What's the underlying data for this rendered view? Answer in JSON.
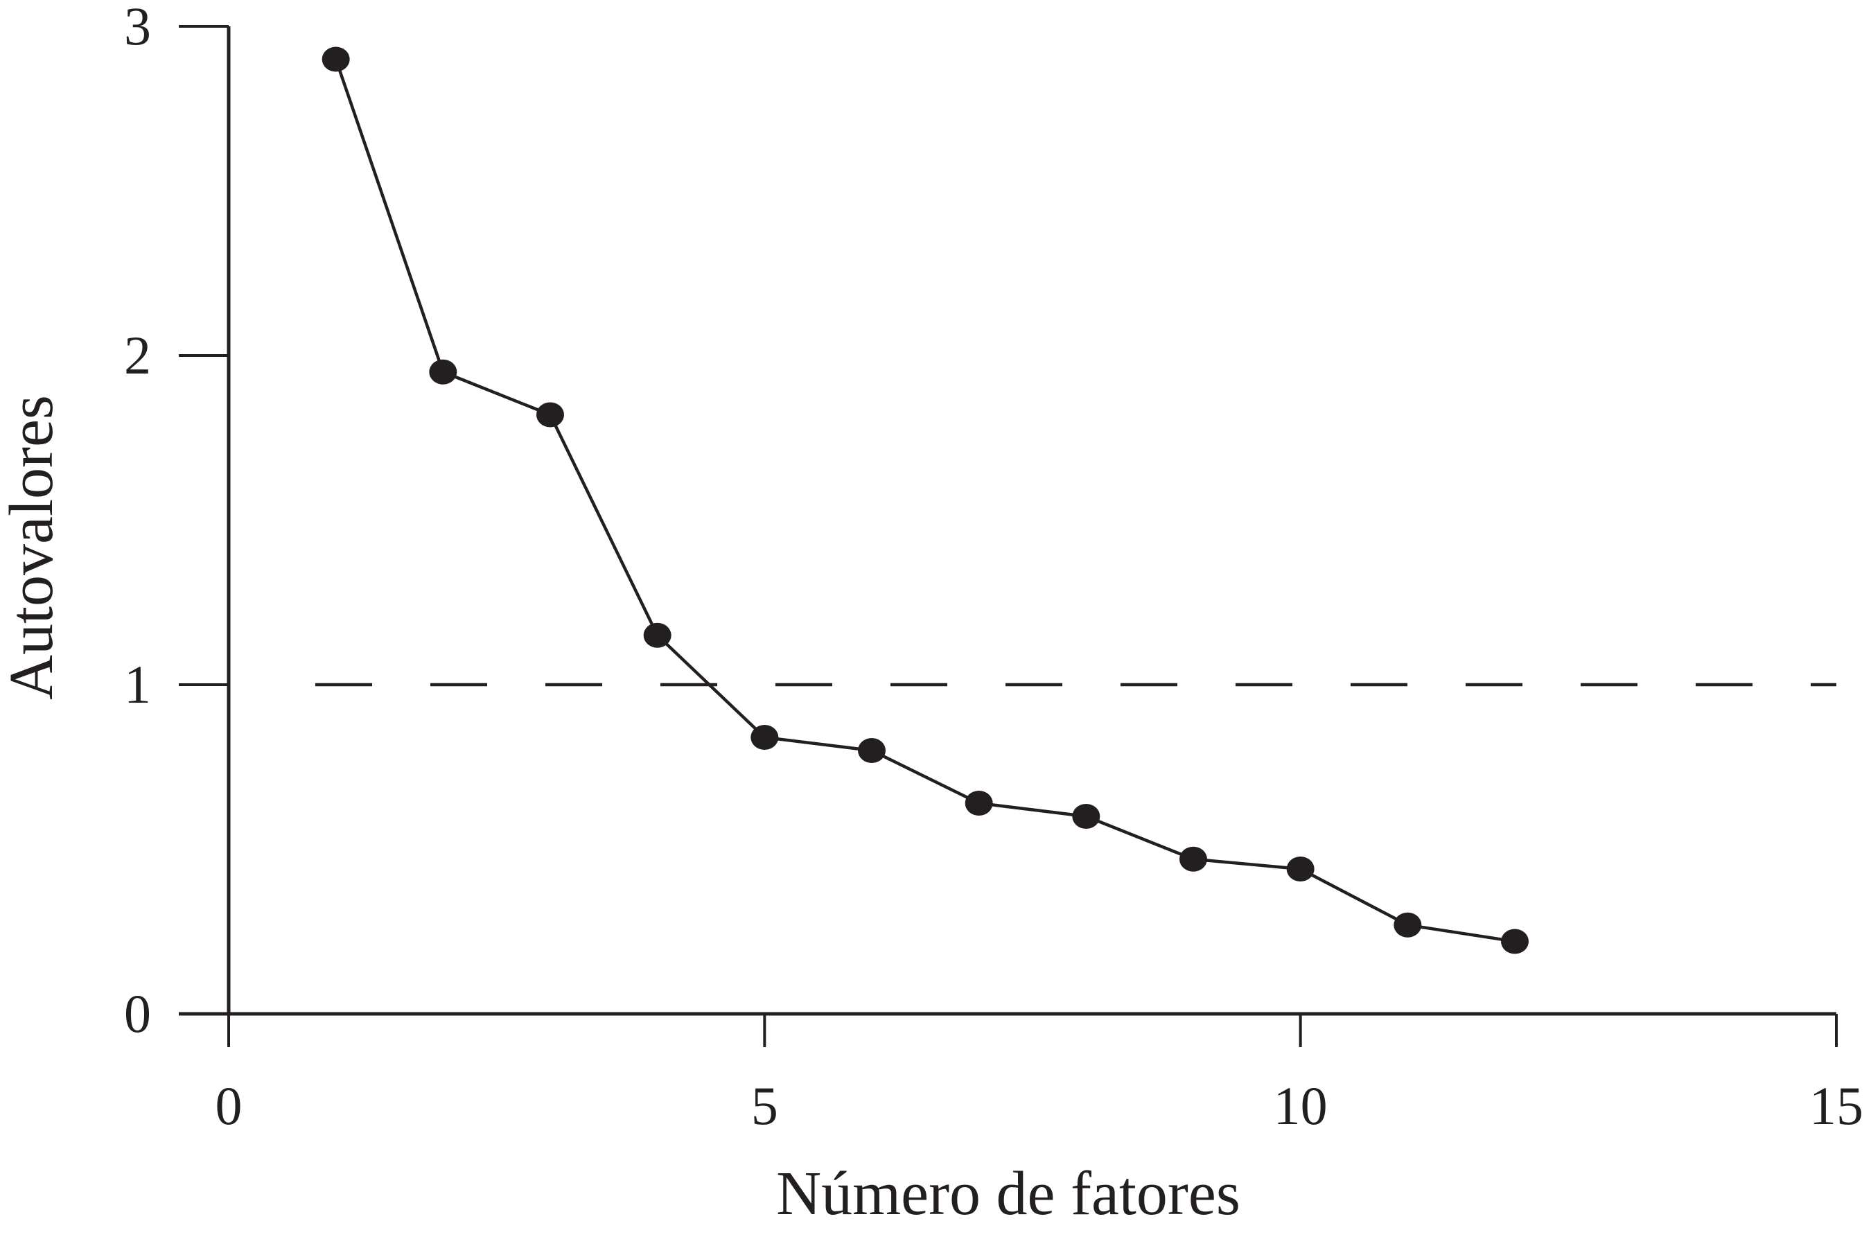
{
  "chart_data": {
    "type": "line",
    "title": "",
    "xlabel": "Número de fatores",
    "ylabel": "Autovalores",
    "xlim": [
      0,
      15
    ],
    "ylim": [
      0,
      3
    ],
    "x_ticks": [
      0,
      5,
      10,
      15
    ],
    "y_ticks": [
      0,
      1,
      2,
      3
    ],
    "x_tick_labels": [
      "0",
      "5",
      "10",
      "15"
    ],
    "y_tick_labels": [
      "0",
      "1",
      "2",
      "3"
    ],
    "grid": false,
    "reference_line": {
      "y": 1,
      "style": "dashed"
    },
    "series": [
      {
        "x": [
          1,
          2,
          3,
          4,
          5,
          6,
          7,
          8,
          9,
          10,
          11,
          12
        ],
        "y": [
          2.9,
          1.95,
          1.82,
          1.15,
          0.84,
          0.8,
          0.64,
          0.6,
          0.47,
          0.44,
          0.27,
          0.22
        ],
        "color": "#231f20",
        "marker": "filled-circle"
      }
    ]
  },
  "colors": {
    "ink": "#231f20",
    "background": "#ffffff"
  }
}
